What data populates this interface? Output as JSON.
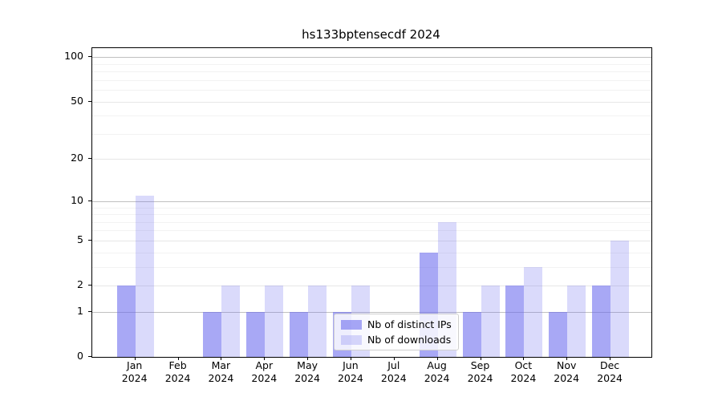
{
  "title": "hs133bptensecdf 2024",
  "chart_data": {
    "type": "bar",
    "title": "hs133bptensecdf 2024",
    "categories": [
      "Jan",
      "Feb",
      "Mar",
      "Apr",
      "May",
      "Jun",
      "Jul",
      "Aug",
      "Sep",
      "Oct",
      "Nov",
      "Dec"
    ],
    "category_year": "2024",
    "series": [
      {
        "name": "Nb of distinct IPs",
        "color": "rgba(102,102,238,0.57)",
        "values": [
          2,
          0,
          1,
          1,
          1,
          1,
          0,
          4,
          1,
          2,
          1,
          2
        ]
      },
      {
        "name": "Nb of downloads",
        "color": "rgba(102,102,238,0.24)",
        "values": [
          11,
          0,
          2,
          2,
          2,
          2,
          0,
          7,
          2,
          3,
          2,
          5
        ]
      }
    ],
    "yscale": "log1p",
    "ylim": [
      0,
      115
    ],
    "yticks": [
      0,
      1,
      2,
      5,
      10,
      20,
      50,
      100
    ],
    "yticks_decade": [
      1,
      10,
      100
    ],
    "yticks_minor": [
      3,
      4,
      6,
      7,
      8,
      9,
      30,
      40,
      60,
      70,
      80,
      90
    ],
    "grid": true,
    "legend_position": "lower center-right inside plot"
  },
  "colors": {
    "bar_distinct_ips": "rgba(102,102,238,0.57)",
    "bar_downloads": "rgba(102,102,238,0.24)",
    "grid_minor": "#f2f2f2",
    "grid_major": "#e6e6e6",
    "grid_decade": "#c0c0c0",
    "axis": "#000000",
    "background": "#ffffff",
    "legend_border": "#cfcfcf"
  }
}
